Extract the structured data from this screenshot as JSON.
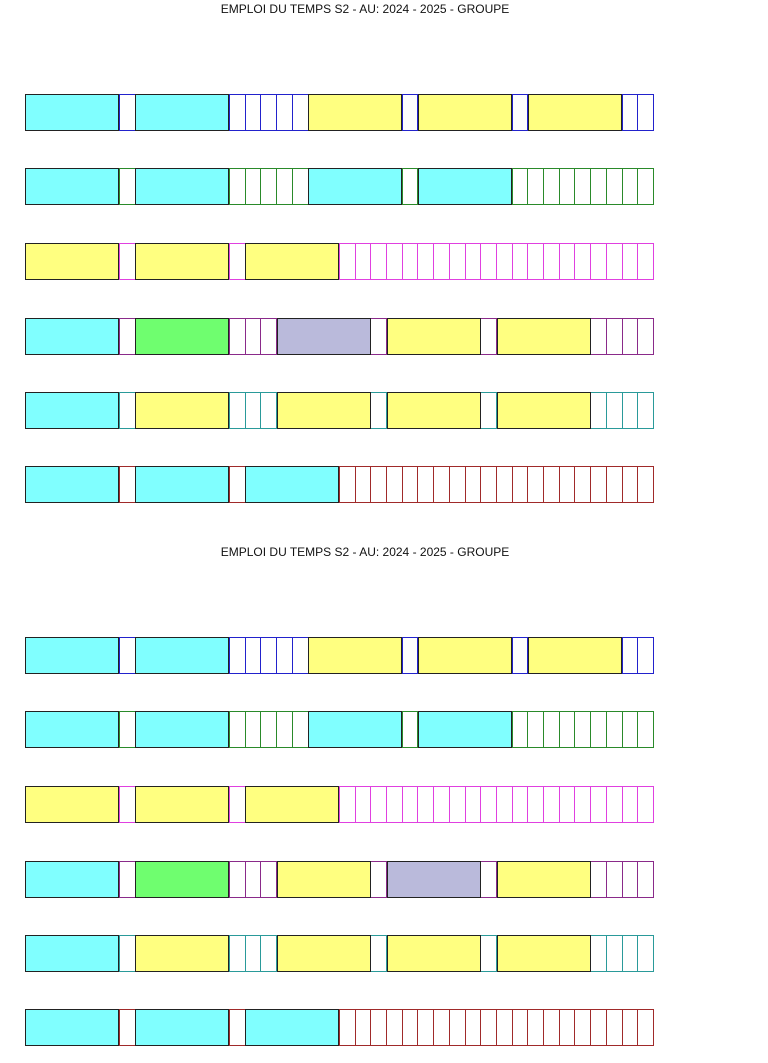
{
  "colors": {
    "cyan": "#80ffff",
    "yellow": "#ffff80",
    "green": "#6ffe6f",
    "lavender": "#babadb"
  },
  "timetables": [
    {
      "title": "EMPLOI DU TEMPS S2 - AU: 2024 - 2025 - GROUPE",
      "rows": [
        {
          "grid_color": "#2222cc",
          "blocks": [
            "cyan",
            "cyan",
            "yellow",
            "yellow",
            "yellow"
          ]
        },
        {
          "grid_color": "#2a8a2a",
          "blocks": [
            "cyan",
            "cyan",
            "cyan",
            "cyan"
          ]
        },
        {
          "grid_color": "#e040e0",
          "blocks": [
            "yellow",
            "yellow",
            "yellow"
          ]
        },
        {
          "grid_color": "#8a2a8a",
          "blocks": [
            "cyan",
            "green",
            "lavender",
            "yellow",
            "yellow"
          ]
        },
        {
          "grid_color": "#2a9a9a",
          "blocks": [
            "cyan",
            "yellow",
            "yellow",
            "yellow",
            "yellow"
          ]
        },
        {
          "grid_color": "#a02a2a",
          "blocks": [
            "cyan",
            "cyan",
            "cyan"
          ]
        }
      ]
    },
    {
      "title": "EMPLOI DU TEMPS S2 - AU: 2024 - 2025 - GROUPE",
      "rows": [
        {
          "grid_color": "#2222cc",
          "blocks": [
            "cyan",
            "cyan",
            "yellow",
            "yellow",
            "yellow"
          ]
        },
        {
          "grid_color": "#2a8a2a",
          "blocks": [
            "cyan",
            "cyan",
            "cyan",
            "cyan"
          ]
        },
        {
          "grid_color": "#e040e0",
          "blocks": [
            "yellow",
            "yellow",
            "yellow"
          ]
        },
        {
          "grid_color": "#8a2a8a",
          "blocks": [
            "cyan",
            "green",
            "yellow",
            "lavender",
            "yellow"
          ]
        },
        {
          "grid_color": "#2a9a9a",
          "blocks": [
            "cyan",
            "yellow",
            "yellow",
            "yellow",
            "yellow"
          ]
        },
        {
          "grid_color": "#a02a2a",
          "blocks": [
            "cyan",
            "cyan",
            "cyan"
          ]
        }
      ]
    }
  ]
}
